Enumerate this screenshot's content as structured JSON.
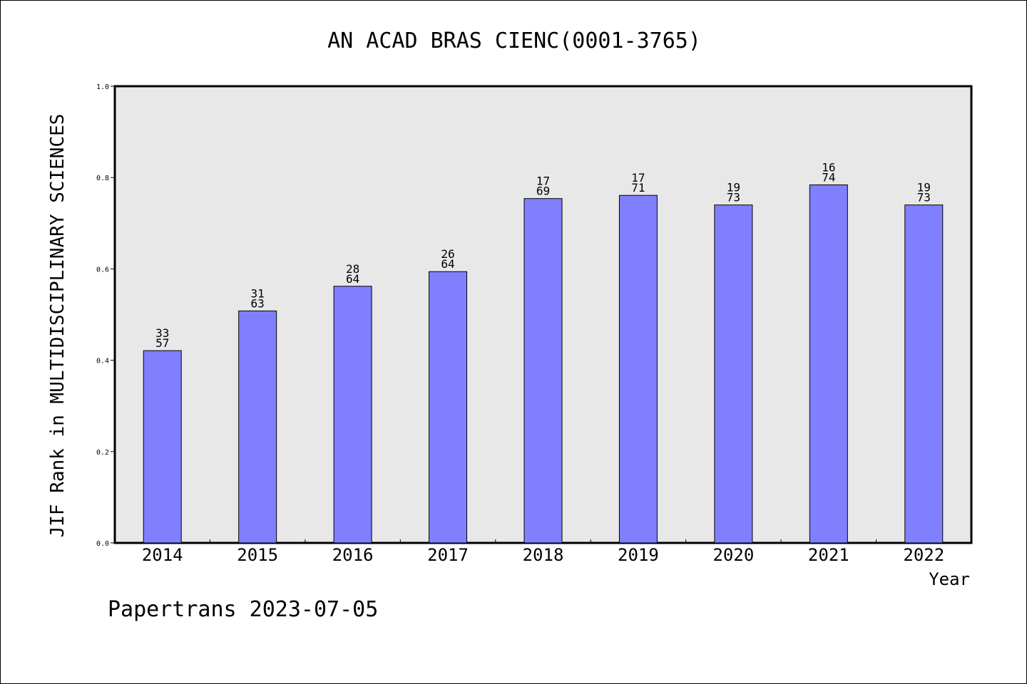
{
  "chart_data": {
    "type": "bar",
    "title": "AN ACAD BRAS CIENC(0001-3765)",
    "ylabel": "JIF Rank in MULTIDISCIPLINARY SCIENCES",
    "xlabel": "Year",
    "ylim": [
      0,
      1.0
    ],
    "yticks": [
      "0.0",
      "0.2",
      "0.4",
      "0.6",
      "0.8",
      "1.0"
    ],
    "categories": [
      "2014",
      "2015",
      "2016",
      "2017",
      "2018",
      "2019",
      "2020",
      "2021",
      "2022"
    ],
    "values": [
      0.421,
      0.508,
      0.562,
      0.594,
      0.754,
      0.761,
      0.74,
      0.784,
      0.74
    ],
    "rank": [
      "33",
      "31",
      "28",
      "26",
      "17",
      "17",
      "19",
      "16",
      "19"
    ],
    "total": [
      "57",
      "63",
      "64",
      "64",
      "69",
      "71",
      "73",
      "74",
      "73"
    ],
    "grid": false,
    "legend": "none"
  },
  "colors": {
    "bar": "#8080ff",
    "plot_background": "#e8e8e8"
  },
  "footer": "Papertrans 2023-07-05"
}
